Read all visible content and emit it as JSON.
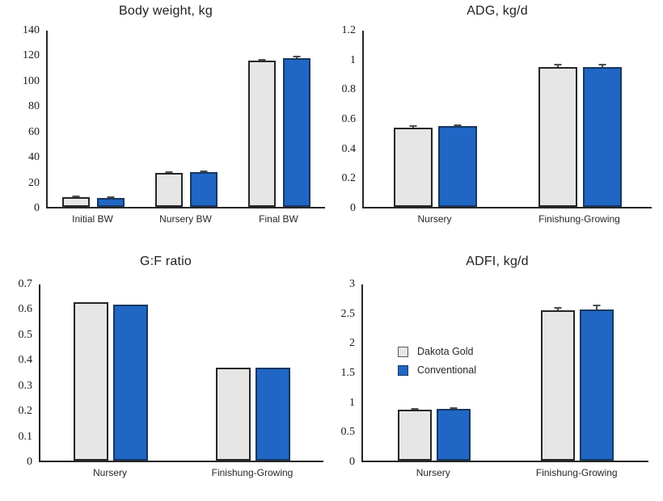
{
  "page": {
    "background": "#ffffff"
  },
  "colors": {
    "series_gray_fill": "#E7E6E6",
    "series_gray_border": "#262626",
    "series_blue_fill": "#2066C4",
    "series_blue_border": "#17375E",
    "axis": "#262626",
    "error_bar": "#4d4d4d",
    "text": "#1f1f1f"
  },
  "legend": {
    "items": [
      {
        "label": "Dakota Gold",
        "swatch": "gray"
      },
      {
        "label": "Conventional",
        "swatch": "blue"
      }
    ]
  },
  "chart_data": [
    {
      "type": "bar",
      "title": "Body weight, kg",
      "categories": [
        "Initial BW",
        "Nursery BW",
        "Final BW"
      ],
      "series": [
        {
          "name": "Dakota Gold",
          "color": "gray",
          "values": [
            7.5,
            27,
            116.5
          ],
          "errors": [
            0.6,
            1,
            1.5
          ]
        },
        {
          "name": "Conventional",
          "color": "blue",
          "values": [
            7.3,
            27.5,
            118
          ],
          "errors": [
            0.6,
            1,
            2
          ]
        }
      ],
      "ylim": [
        0,
        140
      ],
      "ytick_values": [
        0,
        20,
        40,
        60,
        80,
        100,
        120,
        140
      ],
      "ytick_labels": [
        "0",
        "20",
        "40",
        "60",
        "80",
        "100",
        "120",
        "140"
      ],
      "grid": false,
      "legend_position": "none"
    },
    {
      "type": "bar",
      "title": "ADG, kg/d",
      "categories": [
        "Nursery",
        "Finishung-Growing"
      ],
      "series": [
        {
          "name": "Dakota Gold",
          "color": "gray",
          "values": [
            0.54,
            0.95
          ],
          "errors": [
            0.015,
            0.02
          ]
        },
        {
          "name": "Conventional",
          "color": "blue",
          "values": [
            0.55,
            0.95
          ],
          "errors": [
            0.008,
            0.02
          ]
        }
      ],
      "ylim": [
        0,
        1.2
      ],
      "ytick_values": [
        0,
        0.2,
        0.4,
        0.6,
        0.8,
        1,
        1.2
      ],
      "ytick_labels": [
        "0",
        "0.2",
        "0.4",
        "0.6",
        "0.8",
        "1",
        "1.2"
      ],
      "grid": false,
      "legend_position": "none"
    },
    {
      "type": "bar",
      "title": "G:F ratio",
      "categories": [
        "Nursery",
        "Finishung-Growing"
      ],
      "series": [
        {
          "name": "Dakota Gold",
          "color": "gray",
          "values": [
            0.63,
            0.37
          ]
        },
        {
          "name": "Conventional",
          "color": "blue",
          "values": [
            0.62,
            0.37
          ]
        }
      ],
      "ylim": [
        0,
        0.7
      ],
      "ytick_values": [
        0,
        0.1,
        0.2,
        0.3,
        0.4,
        0.5,
        0.6,
        0.7
      ],
      "ytick_labels": [
        "0",
        "0.1",
        "0.2",
        "0.3",
        "0.4",
        "0.5",
        "0.6",
        "0.7"
      ],
      "grid": false,
      "legend_position": "none"
    },
    {
      "type": "bar",
      "title": "ADFI, kg/d",
      "categories": [
        "Nursery",
        "Finishung-Growing"
      ],
      "series": [
        {
          "name": "Dakota Gold",
          "color": "gray",
          "values": [
            0.87,
            2.56
          ],
          "errors": [
            0.015,
            0.05
          ]
        },
        {
          "name": "Conventional",
          "color": "blue",
          "values": [
            0.88,
            2.58
          ],
          "errors": [
            0.02,
            0.08
          ]
        }
      ],
      "ylim": [
        0,
        3
      ],
      "ytick_values": [
        0,
        0.5,
        1,
        1.5,
        2,
        2.5,
        3
      ],
      "ytick_labels": [
        "0",
        "0.5",
        "1",
        "1.5",
        "2",
        "2.5",
        "3"
      ],
      "grid": false,
      "legend_position": "inside-left"
    }
  ]
}
